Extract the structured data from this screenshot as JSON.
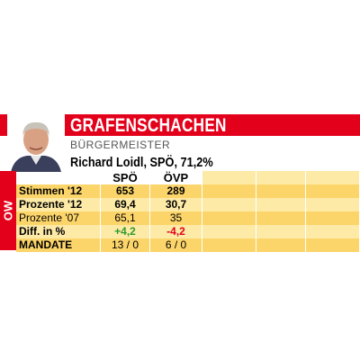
{
  "header": {
    "title": "GRAFENSCHACHEN",
    "role": "BÜRGERMEISTER",
    "mayor": "Richard Loidl, SPÖ, 71,2%"
  },
  "side_label": "OW",
  "table": {
    "columns": [
      "SPÖ",
      "ÖVP"
    ],
    "rows": [
      [
        "Stimmen '12",
        "653",
        "289"
      ],
      [
        "Prozente '12",
        "69,4",
        "30,7"
      ],
      [
        "Prozente '07",
        "65,1",
        "35"
      ],
      [
        "Diff. in %",
        "+4,2",
        "-4,2"
      ],
      [
        "MANDATE",
        "13 / 0",
        "6 / 0"
      ]
    ]
  }
}
